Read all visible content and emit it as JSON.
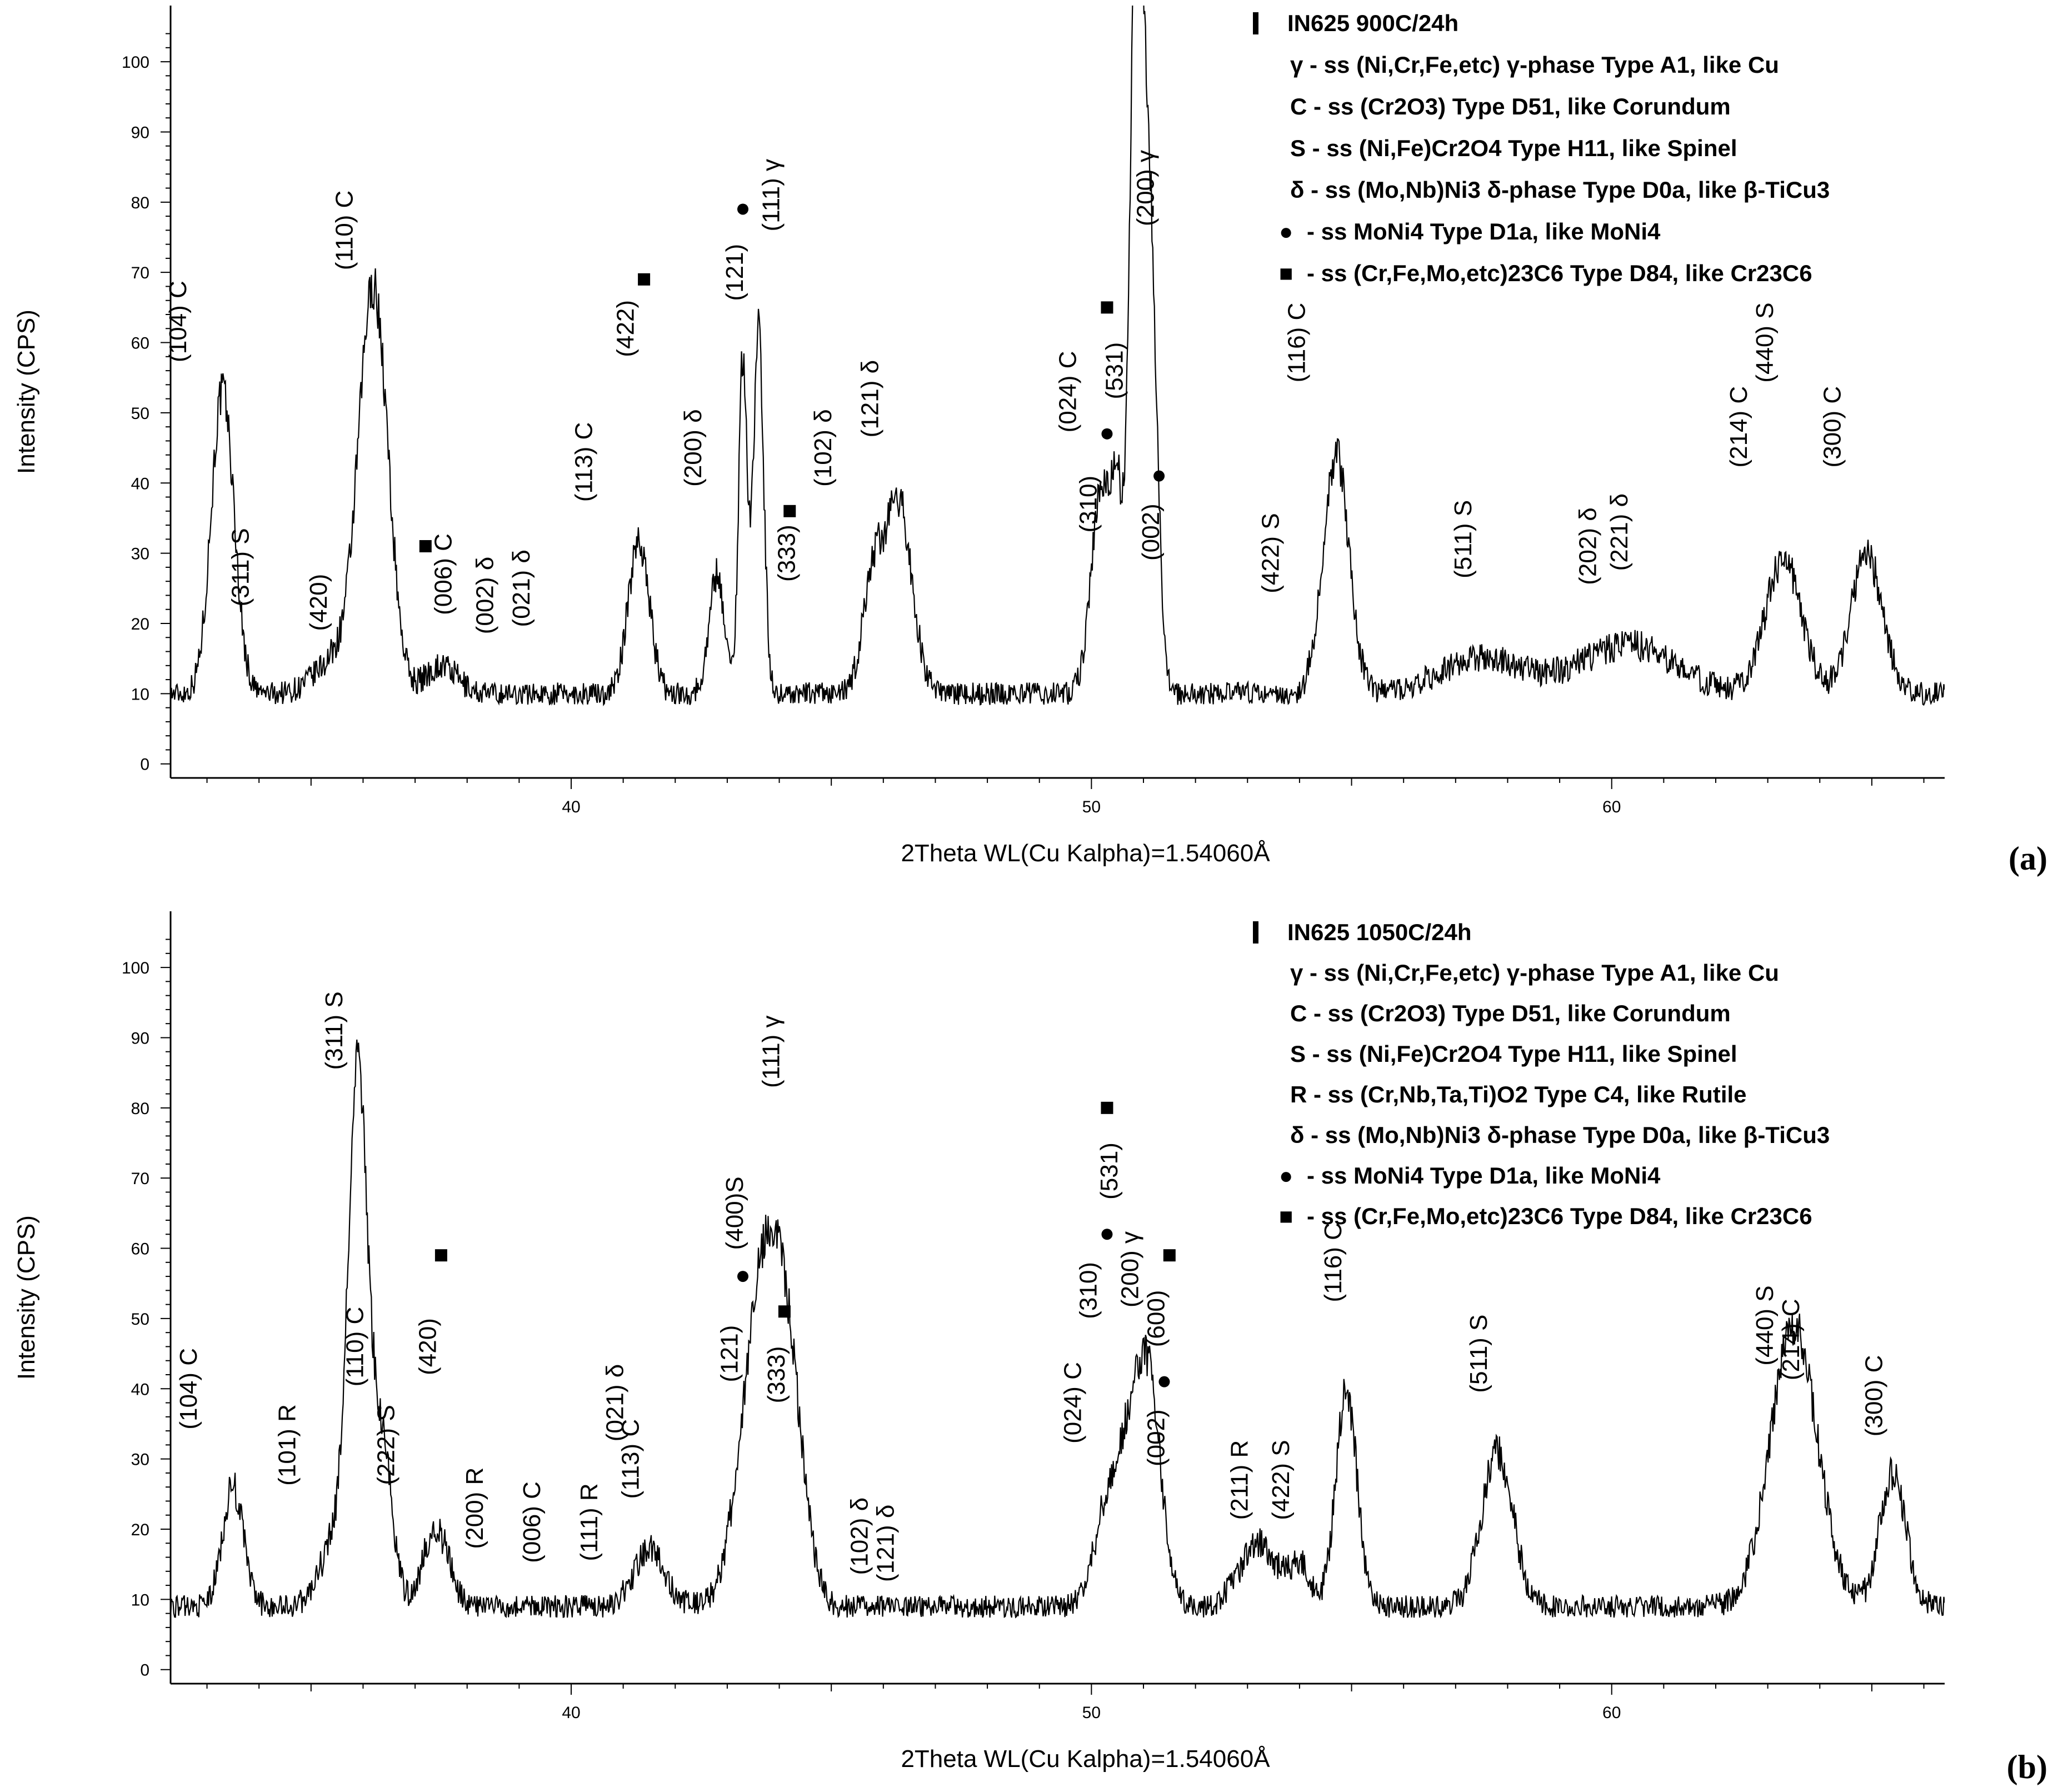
{
  "chart_data": [
    {
      "type": "line",
      "panel_label": "(a)",
      "xlabel": "2Theta  WL(Cu Kalpha)=1.54060Å",
      "ylabel": "Intensity (CPS)",
      "xlim": [
        32.3,
        66.4
      ],
      "ylim": [
        -2,
        108
      ],
      "xticks": [
        40,
        50,
        60
      ],
      "yticks": [
        0,
        10,
        20,
        30,
        40,
        50,
        60,
        70,
        80,
        90,
        100
      ],
      "baseline": 10,
      "series": [
        {
          "name": "IN625 900C/24h",
          "peaks": [
            [
              33.3,
              43,
              0.22
            ],
            [
              35.5,
              5,
              0.4
            ],
            [
              36.2,
              57,
              0.28
            ],
            [
              37.5,
              4,
              0.3
            ],
            [
              41.3,
              22,
              0.2
            ],
            [
              42.8,
              17,
              0.15
            ],
            [
              43.3,
              48,
              0.08
            ],
            [
              43.6,
              52,
              0.1
            ],
            [
              45.8,
              16,
              0.2
            ],
            [
              46.3,
              27,
              0.25
            ],
            [
              50.2,
              30,
              0.2
            ],
            [
              50.5,
              22,
              0.1
            ],
            [
              50.85,
              98,
              0.12
            ],
            [
              51.1,
              70,
              0.15
            ],
            [
              54.7,
              34,
              0.25
            ],
            [
              57.5,
              5,
              0.8
            ],
            [
              60.3,
              7,
              0.9
            ],
            [
              63.3,
              19,
              0.35
            ],
            [
              64.9,
              20,
              0.3
            ]
          ],
          "noise": 1.6
        }
      ],
      "peak_labels": [
        {
          "text": "(104) C",
          "x": 32.6,
          "y": 63
        },
        {
          "text": "(110) C",
          "x": 35.8,
          "y": 76
        },
        {
          "text": "(311) S",
          "x": 33.8,
          "y": 28
        },
        {
          "text": "(420)",
          "x": 35.3,
          "y": 23
        },
        {
          "text": "(006) C",
          "x": 37.7,
          "y": 27
        },
        {
          "text": "(002) δ",
          "x": 38.5,
          "y": 24
        },
        {
          "text": "(021) δ",
          "x": 39.2,
          "y": 25
        },
        {
          "text": "(113) C",
          "x": 40.4,
          "y": 43
        },
        {
          "text": "(422)",
          "x": 41.2,
          "y": 62
        },
        {
          "text": "(200) δ",
          "x": 42.5,
          "y": 45
        },
        {
          "text": "(121) δ",
          "x": 45.9,
          "y": 52
        },
        {
          "text": "(102) δ",
          "x": 45.0,
          "y": 45
        },
        {
          "text": "(121)",
          "x": 43.3,
          "y": 70
        },
        {
          "text": "(111) γ",
          "x": 44.0,
          "y": 81
        },
        {
          "text": "(333)",
          "x": 44.3,
          "y": 30
        },
        {
          "text": "(024) C",
          "x": 49.7,
          "y": 53
        },
        {
          "text": "(531)",
          "x": 50.6,
          "y": 56
        },
        {
          "text": "(310)",
          "x": 50.1,
          "y": 37
        },
        {
          "text": "(200) γ",
          "x": 51.2,
          "y": 82
        },
        {
          "text": "(002)",
          "x": 51.3,
          "y": 33
        },
        {
          "text": "(116) C",
          "x": 54.1,
          "y": 60
        },
        {
          "text": "(422) S",
          "x": 53.6,
          "y": 30
        },
        {
          "text": "(511) S",
          "x": 57.3,
          "y": 32
        },
        {
          "text": "(202) δ",
          "x": 59.7,
          "y": 31
        },
        {
          "text": "(221) δ",
          "x": 60.3,
          "y": 33
        },
        {
          "text": "(214) C",
          "x": 62.6,
          "y": 48
        },
        {
          "text": "(440) S",
          "x": 63.1,
          "y": 60
        },
        {
          "text": "(300) C",
          "x": 64.4,
          "y": 48
        }
      ],
      "markers": [
        {
          "shape": "square",
          "x": 37.2,
          "y": 31
        },
        {
          "shape": "square",
          "x": 41.4,
          "y": 69
        },
        {
          "shape": "circle",
          "x": 43.3,
          "y": 79
        },
        {
          "shape": "square",
          "x": 44.2,
          "y": 36
        },
        {
          "shape": "square",
          "x": 50.3,
          "y": 65
        },
        {
          "shape": "circle",
          "x": 50.3,
          "y": 47
        },
        {
          "shape": "circle",
          "x": 51.3,
          "y": 41
        }
      ],
      "legend": {
        "position": "top-right",
        "title": "IN625   900C/24h",
        "items": [
          {
            "symbol": "",
            "text": "γ - ss (Ni,Cr,Fe,etc)  γ-phase    Type A1, like Cu"
          },
          {
            "symbol": "",
            "text": "C - ss (Cr2O3)     Type D51, like Corundum"
          },
          {
            "symbol": "",
            "text": "S - ss (Ni,Fe)Cr2O4     Type H11, like Spinel"
          },
          {
            "symbol": "",
            "text": "δ - ss (Mo,Nb)Ni3  δ-phase    Type D0a, like β-TiCu3"
          },
          {
            "symbol": "●",
            "text": "- ss MoNi4     Type D1a, like MoNi4"
          },
          {
            "symbol": "■",
            "text": "- ss (Cr,Fe,Mo,etc)23C6     Type D84, like Cr23C6"
          }
        ]
      }
    },
    {
      "type": "line",
      "panel_label": "(b)",
      "xlabel": "2Theta  WL(Cu Kalpha)=1.54060Å",
      "ylabel": "Intensity (CPS)",
      "xlim": [
        32.3,
        66.4
      ],
      "ylim": [
        -2,
        108
      ],
      "xticks": [
        40,
        50,
        60
      ],
      "yticks": [
        0,
        10,
        20,
        30,
        40,
        50,
        60,
        70,
        80,
        90,
        100
      ],
      "baseline": 9,
      "series": [
        {
          "name": "IN625 1050C/24h",
          "peaks": [
            [
              33.5,
              17,
              0.2
            ],
            [
              35.5,
              10,
              0.3
            ],
            [
              35.9,
              72,
              0.18
            ],
            [
              36.35,
              24,
              0.2
            ],
            [
              37.4,
              11,
              0.25
            ],
            [
              41.5,
              8,
              0.3
            ],
            [
              43.7,
              47,
              0.4
            ],
            [
              44.2,
              20,
              0.3
            ],
            [
              50.3,
              13,
              0.25
            ],
            [
              50.9,
              30,
              0.3
            ],
            [
              51.2,
              12,
              0.2
            ],
            [
              53.2,
              9,
              0.35
            ],
            [
              54.0,
              6,
              0.2
            ],
            [
              54.9,
              31,
              0.2
            ],
            [
              57.8,
              22,
              0.3
            ],
            [
              63.5,
              40,
              0.45
            ],
            [
              65.4,
              19,
              0.25
            ]
          ],
          "noise": 1.6
        }
      ],
      "peak_labels": [
        {
          "text": "(104) C",
          "x": 32.8,
          "y": 40
        },
        {
          "text": "(101) R",
          "x": 34.7,
          "y": 32
        },
        {
          "text": "(311) S",
          "x": 35.6,
          "y": 91
        },
        {
          "text": "(110) C",
          "x": 36.0,
          "y": 46
        },
        {
          "text": "(222) S",
          "x": 36.6,
          "y": 32
        },
        {
          "text": "(420)",
          "x": 37.4,
          "y": 46
        },
        {
          "text": "(200) R",
          "x": 38.3,
          "y": 23
        },
        {
          "text": "(006) C",
          "x": 39.4,
          "y": 21
        },
        {
          "text": "(111) R",
          "x": 40.5,
          "y": 21
        },
        {
          "text": "(021) δ",
          "x": 41.0,
          "y": 38
        },
        {
          "text": "(113) C",
          "x": 41.3,
          "y": 30
        },
        {
          "text": "(121)",
          "x": 43.2,
          "y": 45
        },
        {
          "text": "(400)S",
          "x": 43.3,
          "y": 65
        },
        {
          "text": "(111) γ",
          "x": 44.0,
          "y": 88
        },
        {
          "text": "(333)",
          "x": 44.1,
          "y": 42
        },
        {
          "text": "(102) δ",
          "x": 45.7,
          "y": 19
        },
        {
          "text": "(121) δ",
          "x": 46.2,
          "y": 18
        },
        {
          "text": "(024) C",
          "x": 49.8,
          "y": 38
        },
        {
          "text": "(310)",
          "x": 50.1,
          "y": 54
        },
        {
          "text": "(531)",
          "x": 50.5,
          "y": 71
        },
        {
          "text": "(200) γ",
          "x": 50.9,
          "y": 57
        },
        {
          "text": "(600)",
          "x": 51.4,
          "y": 50
        },
        {
          "text": "(002)",
          "x": 51.4,
          "y": 33
        },
        {
          "text": "(211) R",
          "x": 53.0,
          "y": 27
        },
        {
          "text": "(422) S",
          "x": 53.8,
          "y": 27
        },
        {
          "text": "(116) C",
          "x": 54.8,
          "y": 58
        },
        {
          "text": "(511) S",
          "x": 57.6,
          "y": 45
        },
        {
          "text": "(440) S",
          "x": 63.1,
          "y": 49
        },
        {
          "text": "(214) C",
          "x": 63.6,
          "y": 47
        },
        {
          "text": "(300) C",
          "x": 65.2,
          "y": 39
        }
      ],
      "markers": [
        {
          "shape": "square",
          "x": 37.5,
          "y": 59
        },
        {
          "shape": "circle",
          "x": 43.3,
          "y": 56
        },
        {
          "shape": "square",
          "x": 44.1,
          "y": 51
        },
        {
          "shape": "square",
          "x": 50.3,
          "y": 80
        },
        {
          "shape": "circle",
          "x": 50.3,
          "y": 62
        },
        {
          "shape": "square",
          "x": 51.5,
          "y": 59
        },
        {
          "shape": "circle",
          "x": 51.4,
          "y": 41
        }
      ],
      "legend": {
        "position": "top-right",
        "title": "IN625  1050C/24h",
        "items": [
          {
            "symbol": "",
            "text": "γ - ss (Ni,Cr,Fe,etc)  γ-phase    Type A1, like Cu"
          },
          {
            "symbol": "",
            "text": "C - ss (Cr2O3)     Type D51, like Corundum"
          },
          {
            "symbol": "",
            "text": "S - ss (Ni,Fe)Cr2O4     Type H11, like Spinel"
          },
          {
            "symbol": "",
            "text": "R - ss (Cr,Nb,Ta,Ti)O2     Type C4, like Rutile"
          },
          {
            "symbol": "",
            "text": "δ - ss (Mo,Nb)Ni3  δ-phase    Type D0a, like β-TiCu3"
          },
          {
            "symbol": "●",
            "text": "- ss MoNi4     Type D1a, like MoNi4"
          },
          {
            "symbol": "■",
            "text": "- ss (Cr,Fe,Mo,etc)23C6     Type D84, like Cr23C6"
          }
        ]
      }
    }
  ]
}
